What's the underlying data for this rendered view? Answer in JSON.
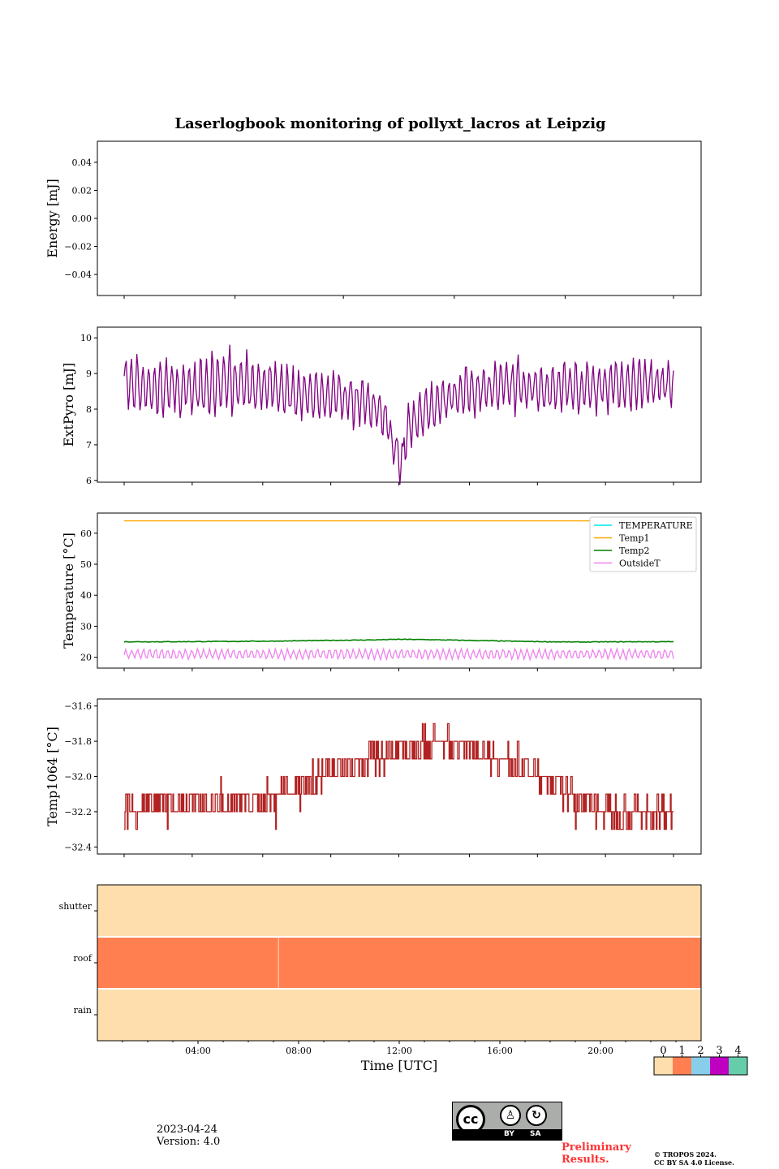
{
  "title": "Laserlogbook monitoring of pollyxt_lacros at Leipzig",
  "date": "2023-04-24",
  "version": "Version: 4.0",
  "preliminary": "Preliminary Results.",
  "copyright_line1": "© TROPOS 2024.",
  "copyright_line2": "CC BY SA 4.0 License.",
  "license_badge": {
    "by": "BY",
    "sa": "SA"
  },
  "colors": {
    "extpyro": "#800080",
    "temperature": "#00e5ee",
    "temp1": "#ffa500",
    "temp2": "#008000",
    "outsidet": "#ee82ee",
    "temp1064": "#b22222",
    "status_0": "#ffdead",
    "status_1": "#ff7f50",
    "status_2": "#87ceeb",
    "status_3": "#c000c0",
    "status_4": "#66cdaa"
  },
  "chart_data": [
    {
      "type": "line",
      "ylabel": "Energy [mJ]",
      "ylim": [
        -0.055,
        0.055
      ],
      "yticks": [
        "0.04",
        "0.02",
        "0.00",
        "−0.02",
        "−0.04"
      ],
      "ytick_values": [
        0.04,
        0.02,
        0.0,
        -0.02,
        -0.04
      ],
      "series": []
    },
    {
      "type": "line",
      "ylabel": "ExtPyro [mJ]",
      "ylim": [
        5.95,
        10.3
      ],
      "yticks": [
        "10",
        "9",
        "8",
        "7",
        "6"
      ],
      "ytick_values": [
        10,
        9,
        8,
        7,
        6
      ],
      "xlim_hours": [
        0,
        24
      ],
      "series": [
        {
          "key": "extpyro",
          "x_hours": [
            1.0,
            1.5,
            2.0,
            2.5,
            3.0,
            3.5,
            4.0,
            4.5,
            5.0,
            5.5,
            6.0,
            6.5,
            7.0,
            7.5,
            8.0,
            8.5,
            9.0,
            9.5,
            10.0,
            10.5,
            11.0,
            11.5,
            12.0,
            12.5,
            13.0,
            13.5,
            14.0,
            14.5,
            15.0,
            15.5,
            16.0,
            16.5,
            17.0,
            17.5,
            18.0,
            18.5,
            19.0,
            19.5,
            20.0,
            20.5,
            21.0,
            21.5,
            22.0,
            22.5,
            22.8
          ],
          "center": [
            8.8,
            8.7,
            8.6,
            8.6,
            8.6,
            8.5,
            8.5,
            8.6,
            8.8,
            8.8,
            8.7,
            8.6,
            8.6,
            8.5,
            8.4,
            8.4,
            8.4,
            8.4,
            8.3,
            8.2,
            8.1,
            7.7,
            6.9,
            7.6,
            7.9,
            8.1,
            8.3,
            8.5,
            8.5,
            8.6,
            8.6,
            8.7,
            8.6,
            8.6,
            8.6,
            8.6,
            8.6,
            8.6,
            8.6,
            8.7,
            8.7,
            8.7,
            8.7,
            8.7,
            8.7
          ],
          "amplitude": [
            0.8,
            0.8,
            0.8,
            0.8,
            0.8,
            0.8,
            0.8,
            0.8,
            0.9,
            0.9,
            0.8,
            0.7,
            0.7,
            0.7,
            0.7,
            0.7,
            0.7,
            0.7,
            0.7,
            0.7,
            0.7,
            0.6,
            0.6,
            0.6,
            0.6,
            0.7,
            0.7,
            0.7,
            0.7,
            0.7,
            0.7,
            0.7,
            0.7,
            0.7,
            0.7,
            0.7,
            0.7,
            0.7,
            0.7,
            0.7,
            0.7,
            0.7,
            0.7,
            0.7,
            0.7
          ]
        }
      ]
    },
    {
      "type": "line",
      "ylabel": "Temperature [°C]",
      "ylim": [
        16.5,
        66.5
      ],
      "yticks": [
        "60",
        "50",
        "40",
        "30",
        "20"
      ],
      "ytick_values": [
        60,
        50,
        40,
        30,
        20
      ],
      "xlim_hours": [
        0,
        24
      ],
      "legend_position": "top-right",
      "series": [
        {
          "key": "temperature",
          "name": "TEMPERATURE",
          "values": []
        },
        {
          "key": "temp1",
          "name": "Temp1",
          "constant": 64.0
        },
        {
          "key": "temp2",
          "name": "Temp2",
          "x_hours": [
            1,
            3,
            5,
            7,
            9,
            11,
            12,
            13,
            15,
            17,
            19,
            21,
            22.8
          ],
          "values": [
            25.0,
            25.0,
            25.1,
            25.2,
            25.4,
            25.6,
            25.8,
            25.7,
            25.4,
            25.1,
            24.9,
            25.0,
            25.0
          ]
        },
        {
          "key": "outsidet",
          "name": "OutsideT",
          "center": 21.0,
          "amplitude": 1.5
        }
      ]
    },
    {
      "type": "line",
      "ylabel": "Temp1064 [°C]",
      "ylim": [
        -32.44,
        -31.56
      ],
      "yticks": [
        "−31.6",
        "−31.8",
        "−32.0",
        "−32.2",
        "−32.4"
      ],
      "ytick_values": [
        -31.6,
        -31.8,
        -32.0,
        -32.2,
        -32.4
      ],
      "xlim_hours": [
        0,
        24
      ],
      "series": [
        {
          "key": "temp1064",
          "x_hours": [
            1,
            3,
            5,
            7,
            8,
            9,
            10,
            11,
            12,
            13,
            14,
            15,
            16,
            17,
            18,
            19,
            20,
            21,
            22,
            22.8
          ],
          "values": [
            -32.2,
            -32.15,
            -32.15,
            -32.12,
            -32.05,
            -32.0,
            -31.95,
            -31.9,
            -31.85,
            -31.8,
            -31.8,
            -31.85,
            -31.9,
            -31.95,
            -32.05,
            -32.12,
            -32.2,
            -32.2,
            -32.2,
            -32.2
          ]
        }
      ]
    },
    {
      "type": "heatmap",
      "xlabel": "Time [UTC]",
      "xticks": [
        "04:00",
        "08:00",
        "12:00",
        "16:00",
        "20:00"
      ],
      "xtick_hours": [
        4,
        8,
        12,
        16,
        20
      ],
      "xlim_hours": [
        0,
        24
      ],
      "rows": [
        "shutter",
        "roof",
        "rain"
      ],
      "row_status": [
        0,
        1,
        0
      ],
      "roof_break_hour": 7.2,
      "colorbar_labels": [
        "0",
        "1",
        "2",
        "3",
        "4"
      ]
    }
  ]
}
